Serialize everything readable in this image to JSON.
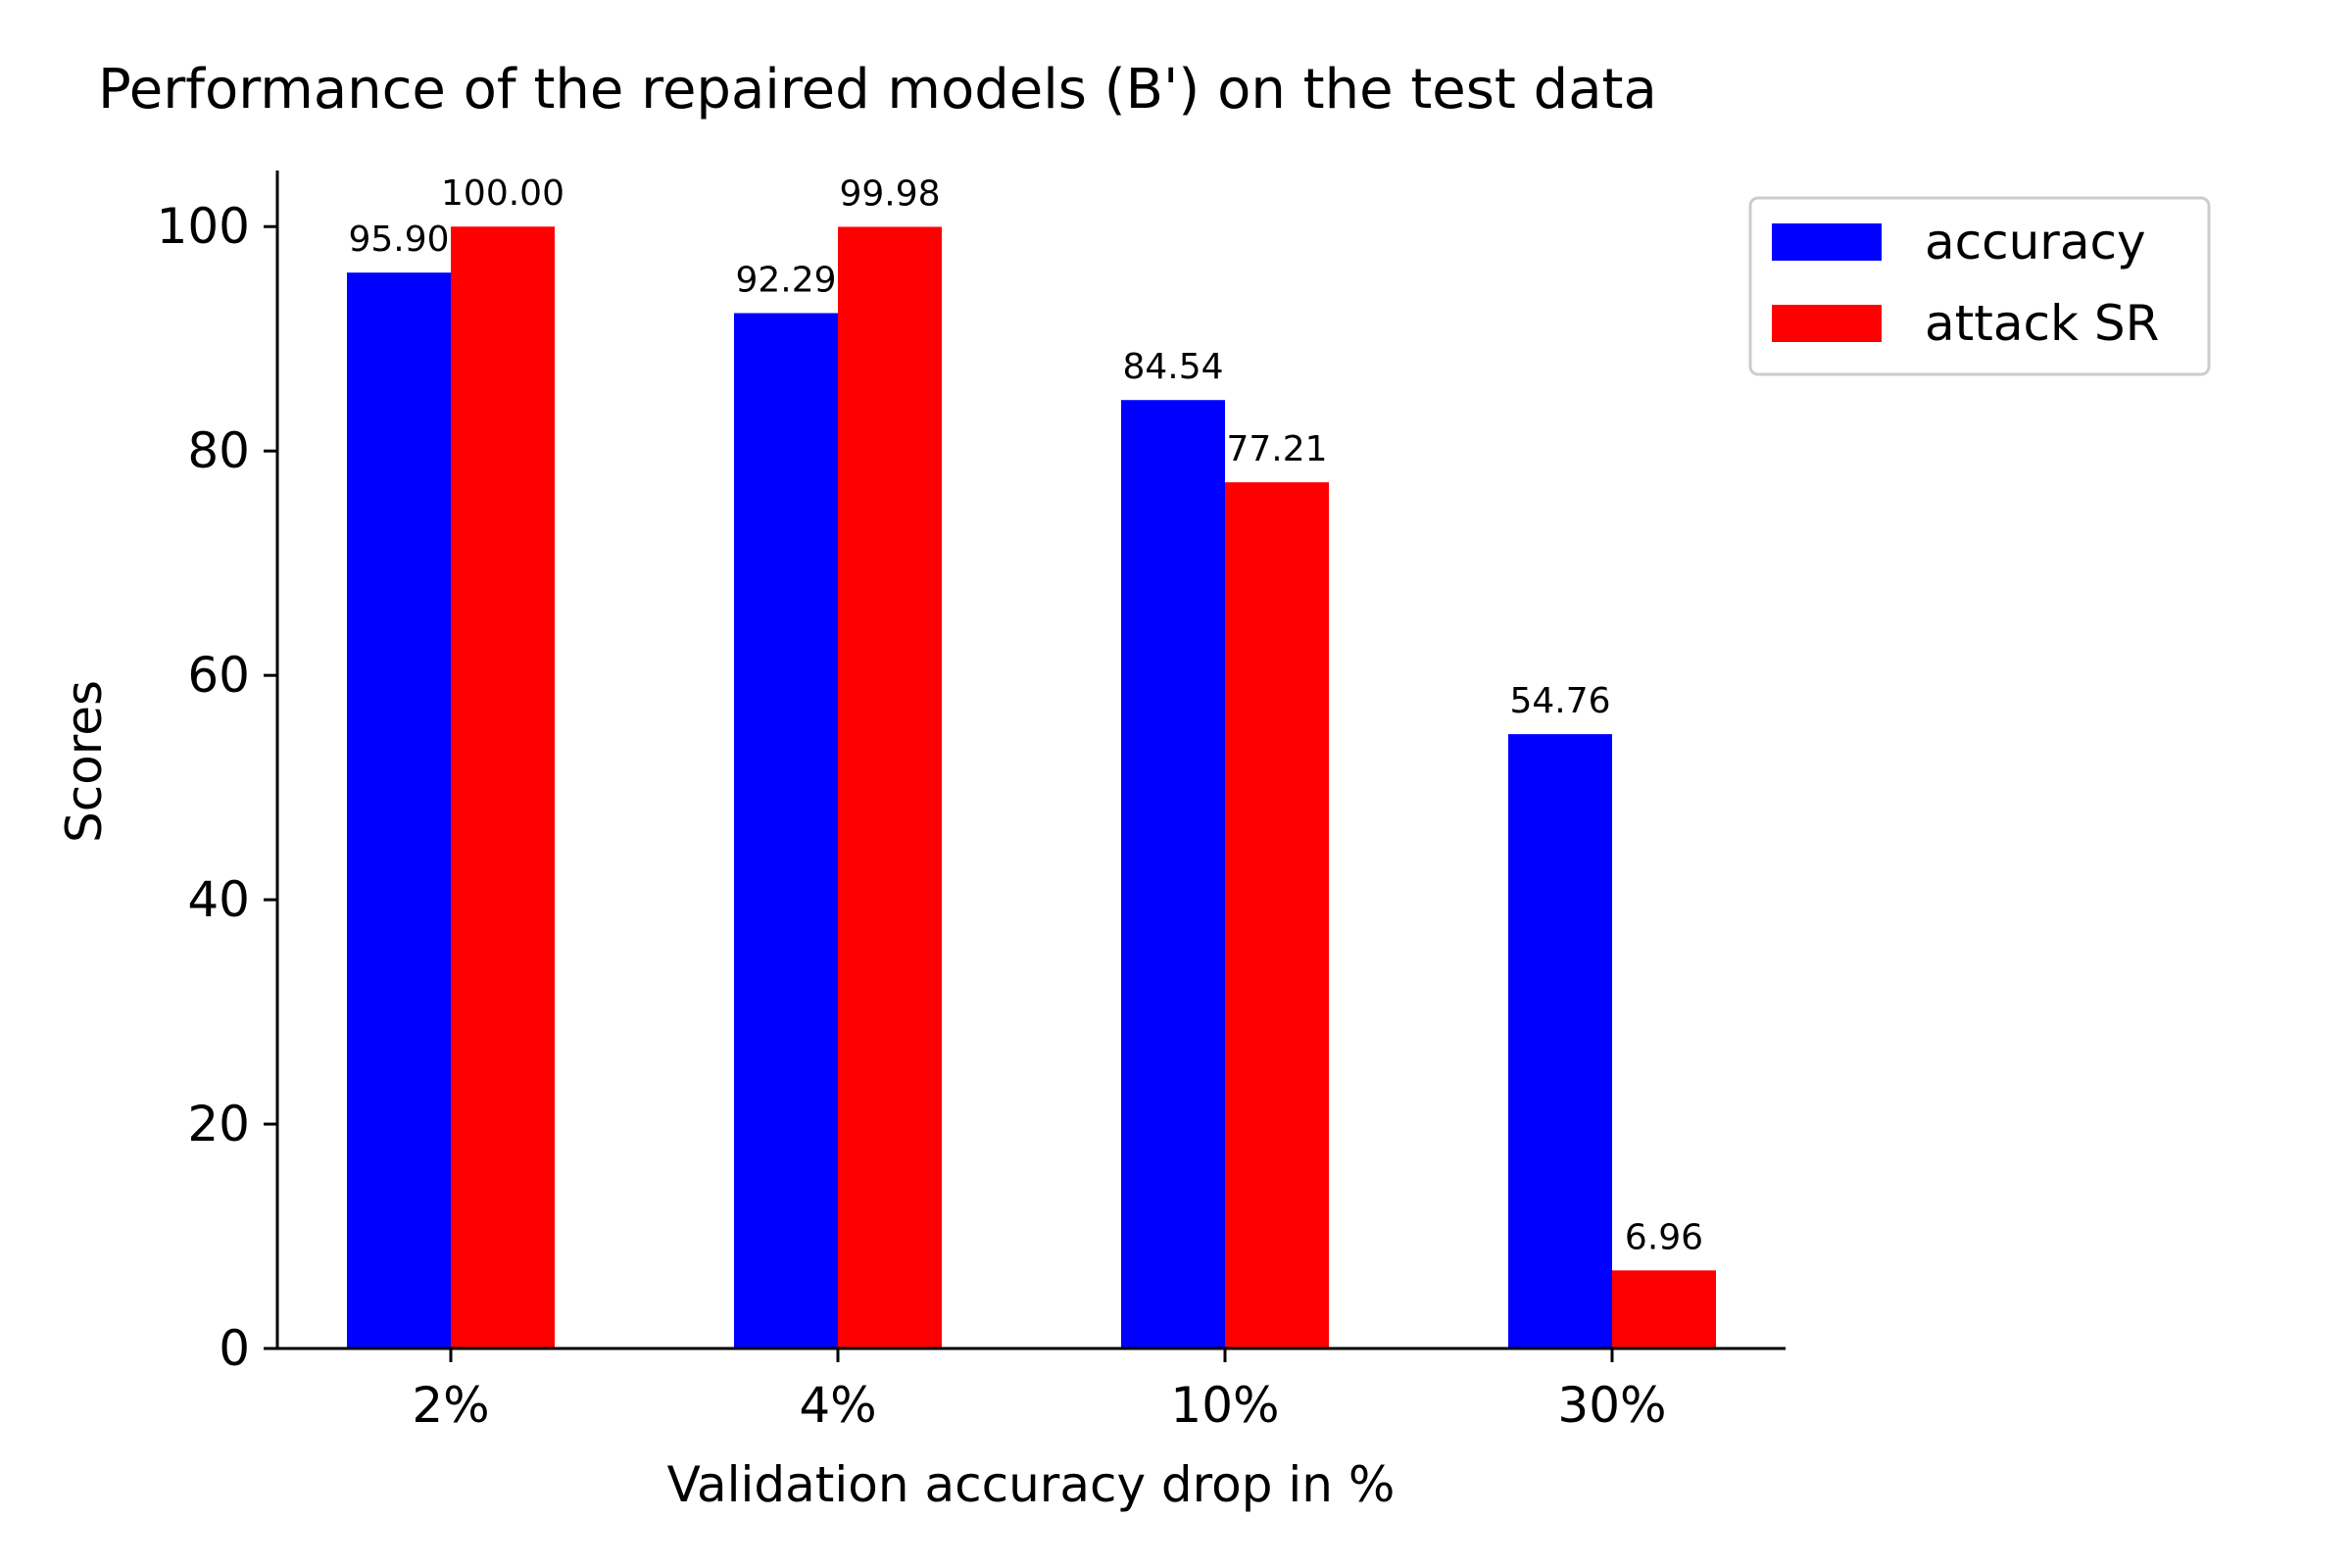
{
  "chart_data": {
    "type": "bar",
    "title": "Performance of the repaired models (B') on the test data",
    "xlabel": "Validation accuracy drop in %",
    "ylabel": "Scores",
    "categories": [
      "2%",
      "4%",
      "10%",
      "30%"
    ],
    "series": [
      {
        "name": "accuracy",
        "color": "#0000ff",
        "values": [
          95.9,
          92.29,
          84.54,
          54.76
        ],
        "labels": [
          "95.90",
          "92.29",
          "84.54",
          "54.76"
        ]
      },
      {
        "name": "attack SR",
        "color": "#ff0000",
        "values": [
          100.0,
          99.98,
          77.21,
          6.96
        ],
        "labels": [
          "100.00",
          "99.98",
          "77.21",
          "6.96"
        ]
      }
    ],
    "ylim": [
      0,
      105
    ],
    "yticks": [
      0,
      20,
      40,
      60,
      80,
      100
    ],
    "grid": false,
    "legend": "top-right"
  }
}
